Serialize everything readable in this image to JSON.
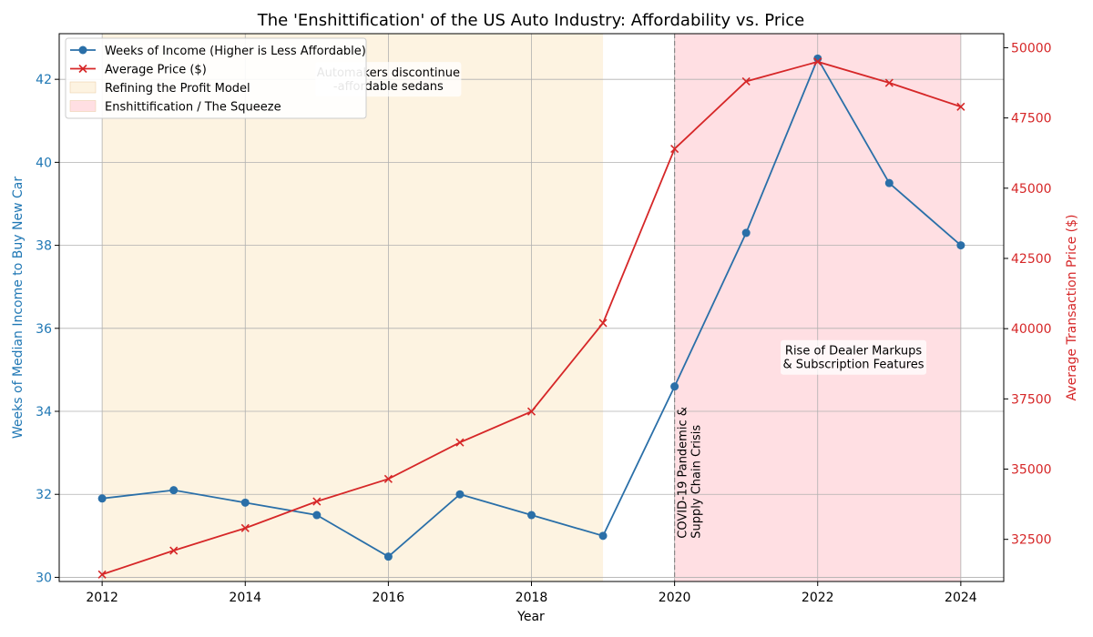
{
  "chart_data": {
    "type": "line",
    "title": "The 'Enshittification' of the US Auto Industry: Affordability vs. Price",
    "xlabel": "Year",
    "ylabel_left": "Weeks of Median Income to Buy New Car",
    "ylabel_right": "Average Transaction Price ($)",
    "x": [
      2012,
      2013,
      2014,
      2015,
      2016,
      2017,
      2018,
      2019,
      2020,
      2021,
      2022,
      2023,
      2024
    ],
    "x_ticks": [
      2012,
      2014,
      2016,
      2018,
      2020,
      2022,
      2024
    ],
    "xlim": [
      2011.4,
      2024.6
    ],
    "ylim_left": [
      29.9,
      43.1
    ],
    "ylim_right": [
      31000,
      50500
    ],
    "y_ticks_left": [
      30,
      32,
      34,
      36,
      38,
      40,
      42
    ],
    "y_ticks_right": [
      32500,
      35000,
      37500,
      40000,
      42500,
      45000,
      47500,
      50000
    ],
    "grid": true,
    "legend_position": "top-left",
    "series": [
      {
        "name": "Weeks of Income (Higher is Less Affordable)",
        "axis": "left",
        "color": "#2a6fa8",
        "marker": "circle",
        "values": [
          31.9,
          32.1,
          31.8,
          31.5,
          30.5,
          32.0,
          31.5,
          31.0,
          34.6,
          38.3,
          42.5,
          39.5,
          38.0
        ]
      },
      {
        "name": "Average Price ($)",
        "axis": "right",
        "color": "#d62728",
        "marker": "x",
        "values": [
          31250,
          32100,
          32900,
          33850,
          34650,
          35950,
          37050,
          40200,
          46400,
          48800,
          49500,
          48750,
          47900
        ]
      }
    ],
    "spans": [
      {
        "name": "Refining the Profit Model",
        "x_start": 2012,
        "x_end": 2019,
        "color": "#fdf3e1"
      },
      {
        "name": "Enshittification / The Squeeze",
        "x_start": 2020,
        "x_end": 2024,
        "color": "#ffdfe3"
      }
    ],
    "vline": {
      "x": 2020,
      "color": "#888888"
    },
    "annotations": [
      {
        "lines": [
          "Automakers discontinue",
          "-affordable sedans"
        ],
        "x": 2016,
        "y_left": 42.0
      },
      {
        "lines": [
          "Rise of Dealer Markups",
          "& Subscription Features"
        ],
        "x": 2022.5,
        "y_left": 35.3
      },
      {
        "lines": [
          "COVID-19 Pandemic &",
          "Supply Chain Crisis"
        ],
        "x": 2020.1,
        "y_left": 31.2,
        "rotated": true
      }
    ],
    "colors": {
      "left_axis": "#1f77b4",
      "right_axis": "#d62728",
      "grid": "#b0b0b0"
    }
  }
}
